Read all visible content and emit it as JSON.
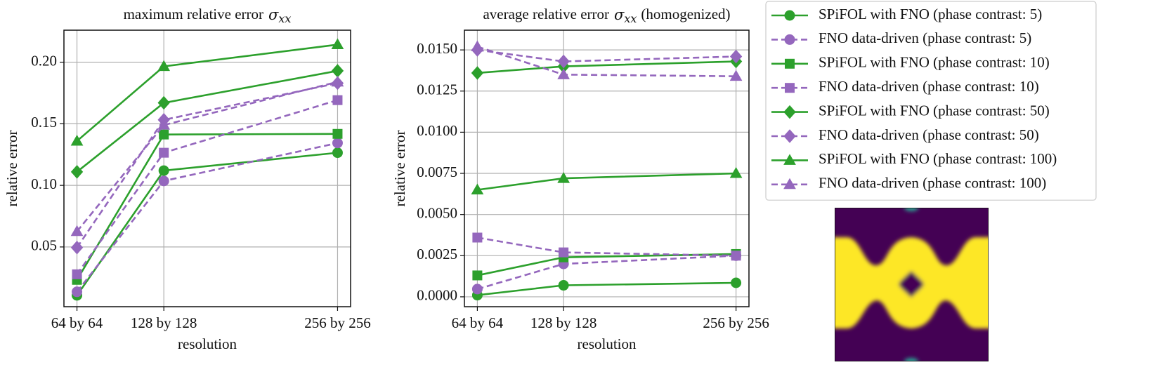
{
  "chart_data": [
    {
      "type": "line",
      "title": {
        "text": "maximum relative error",
        "symbol": "σ",
        "subscript": "xx"
      },
      "xlabel": "resolution",
      "ylabel": "relative error",
      "x": [
        64,
        128,
        256
      ],
      "xlim": [
        54.4,
        265.6
      ],
      "xticks": [
        {
          "value": 64,
          "label": "64 by 64"
        },
        {
          "value": 128,
          "label": "128 by 128"
        },
        {
          "value": 256,
          "label": "256 by 256"
        }
      ],
      "ylim": [
        0.0015,
        0.226
      ],
      "yticks": [
        0.05,
        {
          "value": 0.1,
          "label": "0.10"
        },
        {
          "value": 0.15,
          "label": "0.15"
        },
        {
          "value": 0.2,
          "label": "0.20"
        }
      ],
      "grid": true,
      "legend": "outside right",
      "series": [
        {
          "name": "SPiFOL with FNO (phase contrast: 5)",
          "color": "#2ca02c",
          "marker": "circle",
          "linestyle": "solid",
          "values": [
            0.0107,
            0.112,
            0.1265
          ]
        },
        {
          "name": "FNO data-driven (phase contrast: 5)",
          "color": "#9467bd",
          "marker": "circle",
          "linestyle": "dashed",
          "values": [
            0.0136,
            0.1036,
            0.1344
          ]
        },
        {
          "name": "SPiFOL with FNO (phase contrast: 10)",
          "color": "#2ca02c",
          "marker": "square",
          "linestyle": "solid",
          "values": [
            0.0233,
            0.1413,
            0.1418
          ]
        },
        {
          "name": "FNO data-driven (phase contrast: 10)",
          "color": "#9467bd",
          "marker": "square",
          "linestyle": "dashed",
          "values": [
            0.0278,
            0.1265,
            0.1692
          ]
        },
        {
          "name": "SPiFOL with FNO (phase contrast: 50)",
          "color": "#2ca02c",
          "marker": "diamond",
          "linestyle": "solid",
          "values": [
            0.111,
            0.167,
            0.193
          ]
        },
        {
          "name": "FNO data-driven (phase contrast: 50)",
          "color": "#9467bd",
          "marker": "diamond",
          "linestyle": "dashed",
          "values": [
            0.0495,
            0.1532,
            0.183
          ]
        },
        {
          "name": "SPiFOL with FNO (phase contrast: 100)",
          "color": "#2ca02c",
          "marker": "triangle",
          "linestyle": "solid",
          "values": [
            0.136,
            0.1966,
            0.2143
          ]
        },
        {
          "name": "FNO data-driven (phase contrast: 100)",
          "color": "#9467bd",
          "marker": "triangle",
          "linestyle": "dashed",
          "values": [
            0.0626,
            0.149,
            0.184
          ]
        }
      ]
    },
    {
      "type": "line",
      "title": {
        "text": "average relative error",
        "symbol": "σ",
        "subscript": "xx",
        "suffix": "(homogenized)"
      },
      "xlabel": "resolution",
      "ylabel": "relative error",
      "x": [
        64,
        128,
        256
      ],
      "xlim": [
        54.4,
        265.6
      ],
      "xticks": [
        {
          "value": 64,
          "label": "64 by 64"
        },
        {
          "value": 128,
          "label": "128 by 128"
        },
        {
          "value": 256,
          "label": "256 by 256"
        }
      ],
      "ylim": [
        -0.0006,
        0.0162
      ],
      "yticks": [
        {
          "value": 0,
          "label": "0.0000"
        },
        {
          "value": 0.0025,
          "label": "0.0025"
        },
        {
          "value": 0.005,
          "label": "0.0050"
        },
        {
          "value": 0.0075,
          "label": "0.0075"
        },
        {
          "value": 0.01,
          "label": "0.0100"
        },
        {
          "value": 0.0125,
          "label": "0.0125"
        },
        {
          "value": 0.015,
          "label": "0.0150"
        }
      ],
      "grid": true,
      "series": [
        {
          "color": "#2ca02c",
          "marker": "circle",
          "linestyle": "solid",
          "values": [
            0.0001,
            0.0007,
            0.00085
          ]
        },
        {
          "color": "#9467bd",
          "marker": "circle",
          "linestyle": "dashed",
          "values": [
            0.00047,
            0.002,
            0.0025
          ]
        },
        {
          "color": "#2ca02c",
          "marker": "square",
          "linestyle": "solid",
          "values": [
            0.0013,
            0.0024,
            0.0026
          ]
        },
        {
          "color": "#9467bd",
          "marker": "square",
          "linestyle": "dashed",
          "values": [
            0.0036,
            0.0027,
            0.0025
          ]
        },
        {
          "color": "#2ca02c",
          "marker": "diamond",
          "linestyle": "solid",
          "values": [
            0.0136,
            0.014,
            0.0143
          ]
        },
        {
          "color": "#9467bd",
          "marker": "diamond",
          "linestyle": "dashed",
          "values": [
            0.015,
            0.0143,
            0.0146
          ]
        },
        {
          "color": "#2ca02c",
          "marker": "triangle",
          "linestyle": "solid",
          "values": [
            0.0065,
            0.0072,
            0.0075
          ]
        },
        {
          "color": "#9467bd",
          "marker": "triangle",
          "linestyle": "dashed",
          "values": [
            0.0152,
            0.0135,
            0.0134
          ]
        }
      ]
    }
  ]
}
